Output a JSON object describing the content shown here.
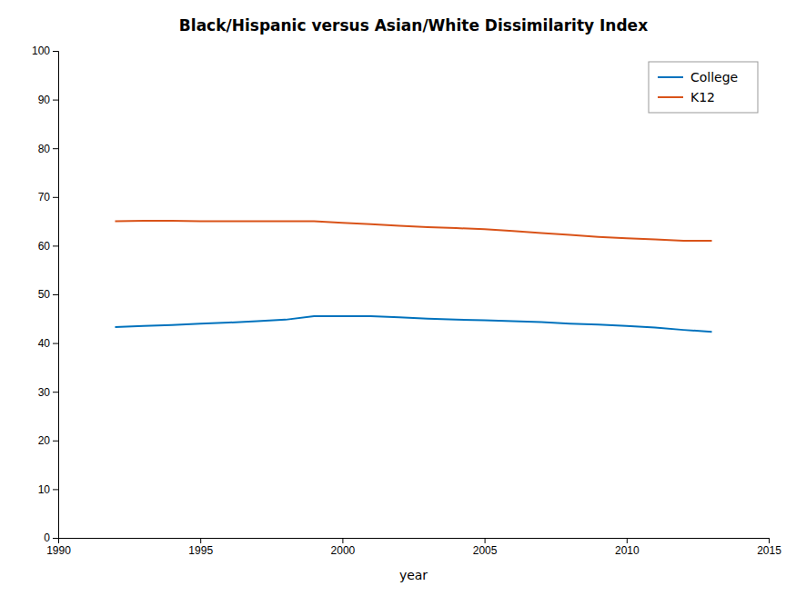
{
  "chart_data": {
    "type": "line",
    "title": "Black/Hispanic versus Asian/White Dissimilarity Index",
    "x_label": "year",
    "x": [
      1992,
      1993,
      1994,
      1995,
      1996,
      1997,
      1998,
      1999,
      2000,
      2001,
      2002,
      2003,
      2004,
      2005,
      2006,
      2007,
      2008,
      2009,
      2010,
      2011,
      2012,
      2013
    ],
    "series": [
      {
        "name": "College",
        "color": "#0072BD",
        "values": [
          43.3,
          43.5,
          43.7,
          44.0,
          44.2,
          44.5,
          44.8,
          45.5,
          45.5,
          45.5,
          45.3,
          45.0,
          44.8,
          44.7,
          44.5,
          44.3,
          44.0,
          43.8,
          43.5,
          43.2,
          42.7,
          42.3
        ]
      },
      {
        "name": "K12",
        "color": "#D95319",
        "values": [
          65.0,
          65.1,
          65.1,
          65.0,
          65.0,
          65.0,
          65.0,
          65.0,
          64.7,
          64.4,
          64.1,
          63.8,
          63.6,
          63.4,
          63.0,
          62.6,
          62.2,
          61.8,
          61.5,
          61.3,
          61.0,
          61.0
        ]
      }
    ],
    "xlim": [
      1990,
      2015
    ],
    "ylim": [
      0,
      100
    ],
    "xticks": [
      1990,
      1995,
      2000,
      2005,
      2010,
      2015
    ],
    "yticks": [
      0,
      10,
      20,
      30,
      40,
      50,
      60,
      70,
      80,
      90,
      100
    ],
    "grid": false,
    "legend": "upper right"
  }
}
